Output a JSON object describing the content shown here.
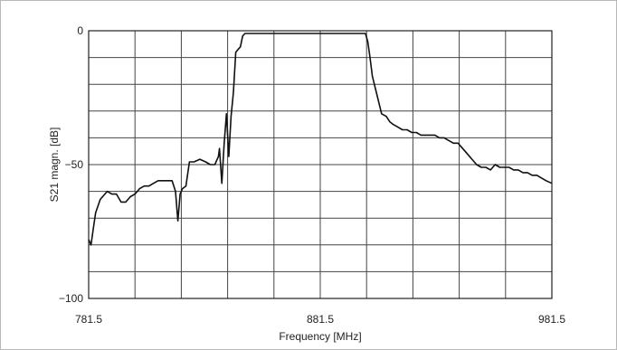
{
  "chart_data": {
    "type": "line",
    "title": "",
    "xlabel": "Frequency [MHz]",
    "ylabel": "S21 magn. [dB]",
    "xlim": [
      781.5,
      981.5
    ],
    "ylim": [
      -100,
      0
    ],
    "x_tick_labels": [
      "781.5",
      "881.5",
      "981.5"
    ],
    "y_tick_labels": [
      "0",
      "−50",
      "−100"
    ],
    "x_ticks": [
      781.5,
      881.5,
      981.5
    ],
    "y_ticks": [
      0,
      -50,
      -100
    ],
    "grid": true,
    "x_grid_divisions": 10,
    "y_grid_divisions": 10,
    "series": [
      {
        "color": "#111111",
        "x": [
          781.5,
          782.5,
          783.5,
          784.5,
          786.5,
          789.5,
          791.5,
          793.5,
          795.5,
          797.5,
          799.5,
          801.5,
          803.5,
          805.5,
          807.5,
          809.5,
          811.5,
          813.5,
          815.5,
          817.5,
          819.0,
          820.0,
          821.0,
          822.0,
          823.5,
          825.0,
          827.0,
          829.5,
          832.0,
          834.0,
          836.0,
          837.5,
          838.0,
          839.0,
          840.0,
          841.0,
          842.0,
          843.0,
          844.0,
          845.0,
          846.0,
          847.0,
          848.0,
          849.0,
          850.0,
          852.0,
          853.0,
          855.0,
          857.0,
          861.0,
          865.0,
          869.0,
          873.0,
          877.0,
          881.0,
          885.0,
          889.0,
          893.0,
          897.0,
          901.0,
          902.0,
          903.0,
          904.0,
          906.0,
          908.0,
          910.0,
          911.5,
          913.0,
          915.0,
          917.0,
          919.0,
          921.0,
          923.0,
          925.0,
          927.0,
          929.0,
          931.0,
          933.0,
          935.0,
          937.0,
          939.0,
          941.0,
          943.0,
          945.0,
          947.0,
          949.0,
          951.0,
          953.0,
          955.0,
          957.0,
          959.0,
          961.0,
          963.0,
          965.0,
          967.0,
          969.0,
          971.0,
          973.0,
          975.0,
          977.0,
          979.0,
          981.5
        ],
        "y": [
          -78,
          -80,
          -74,
          -68,
          -63,
          -60,
          -61,
          -61,
          -64,
          -64,
          -62,
          -61,
          -59,
          -58,
          -58,
          -57,
          -56,
          -56,
          -56,
          -56,
          -60,
          -71,
          -61,
          -59,
          -58,
          -49,
          -49,
          -48,
          -49,
          -50,
          -50,
          -47,
          -44,
          -57,
          -42,
          -31,
          -47,
          -32,
          -23,
          -8,
          -7,
          -6,
          -2,
          -1,
          -1,
          -1,
          -1,
          -1,
          -1,
          -1,
          -1,
          -1,
          -1,
          -1,
          -1,
          -1,
          -1,
          -1,
          -1,
          -1,
          -4,
          -10,
          -17,
          -24,
          -31,
          -32,
          -34,
          -35,
          -36,
          -37,
          -37,
          -38,
          -38,
          -39,
          -39,
          -39,
          -39,
          -40,
          -40,
          -41,
          -42,
          -42,
          -44,
          -46,
          -48,
          -50,
          -51,
          -51,
          -52,
          -50,
          -51,
          -51,
          -51,
          -52,
          -52,
          -53,
          -53,
          -54,
          -54,
          -55,
          -56,
          -57
        ]
      }
    ]
  }
}
